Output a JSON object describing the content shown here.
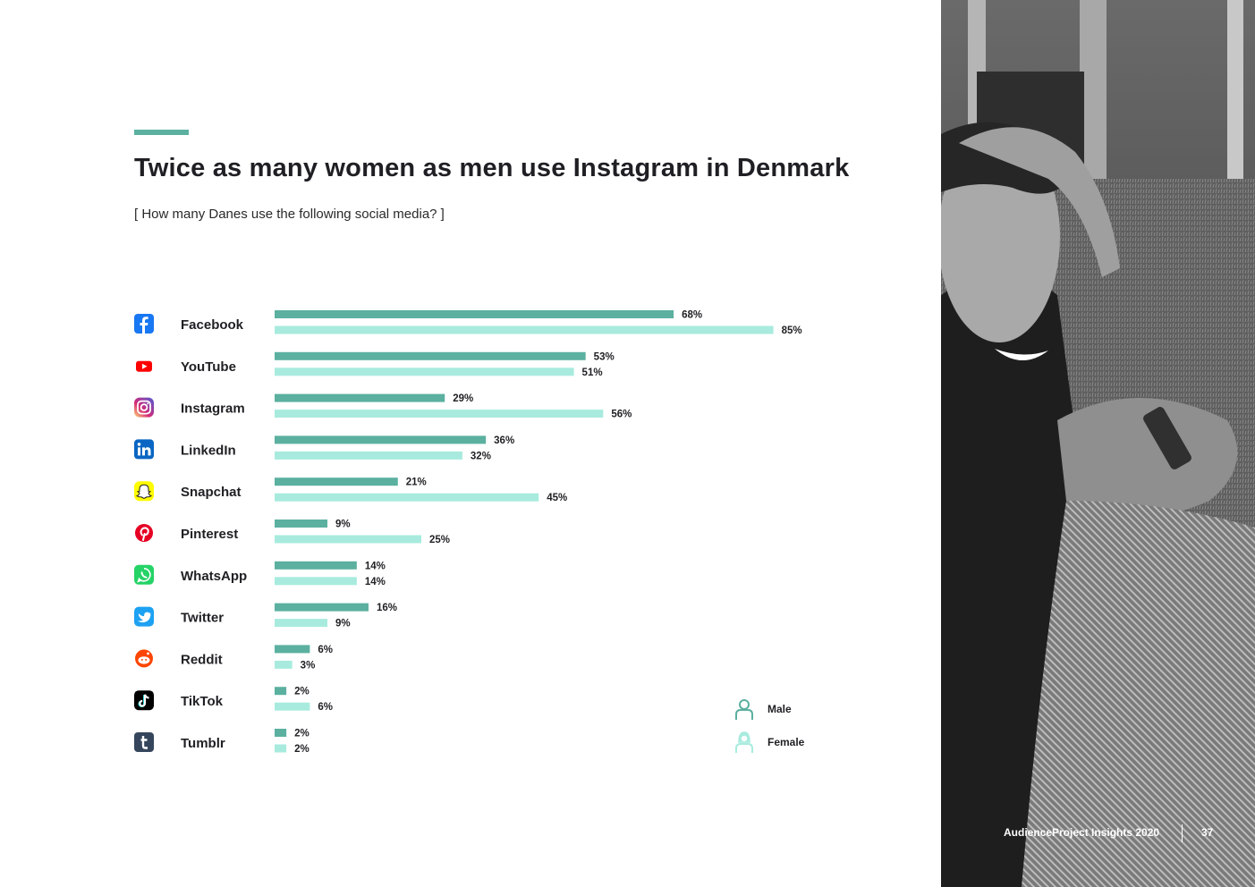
{
  "header": {
    "title": "Twice as many women as men use Instagram in Denmark",
    "subtitle": "[ How many Danes use the following social media? ]"
  },
  "legend": {
    "male_label": "Male",
    "female_label": "Female"
  },
  "colors": {
    "male": "#5bb0a0",
    "female": "#a8ebde",
    "accent": "#5bb0a0"
  },
  "chart_data": {
    "type": "bar",
    "orientation": "horizontal",
    "categories": [
      "Facebook",
      "YouTube",
      "Instagram",
      "LinkedIn",
      "Snapchat",
      "Pinterest",
      "WhatsApp",
      "Twitter",
      "Reddit",
      "TikTok",
      "Tumblr"
    ],
    "icons": [
      "facebook-icon",
      "youtube-icon",
      "instagram-icon",
      "linkedin-icon",
      "snapchat-icon",
      "pinterest-icon",
      "whatsapp-icon",
      "twitter-icon",
      "reddit-icon",
      "tiktok-icon",
      "tumblr-icon"
    ],
    "series": [
      {
        "name": "Male",
        "values": [
          68,
          53,
          29,
          36,
          21,
          9,
          14,
          16,
          6,
          2,
          2
        ]
      },
      {
        "name": "Female",
        "values": [
          85,
          51,
          56,
          32,
          45,
          25,
          14,
          9,
          3,
          6,
          2
        ]
      }
    ],
    "value_suffix": "%",
    "xlim": [
      0,
      100
    ],
    "grid": false,
    "legend_position": "bottom-right"
  },
  "footer": {
    "publication": "AudienceProject Insights 2020",
    "page_number": "37"
  }
}
